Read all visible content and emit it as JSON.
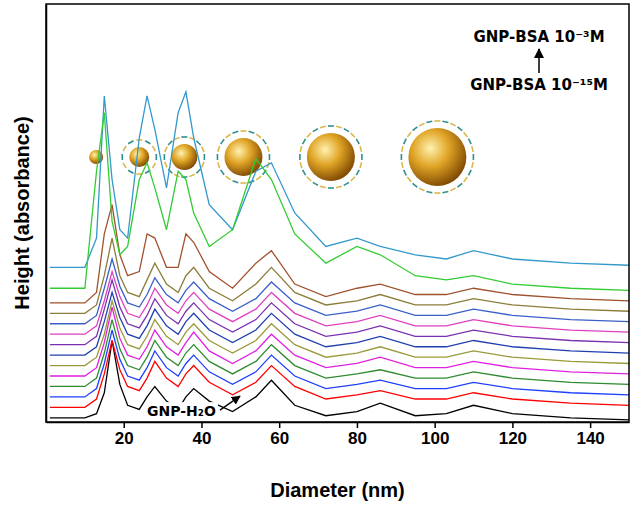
{
  "chart_data": {
    "type": "line",
    "x_label": "Diameter (nm)",
    "y_label": "Height (absorbance)",
    "annotations": [
      "GNP-BSA 10⁻³M",
      "GNP-BSA 10⁻¹⁵M",
      "GNP-H₂O"
    ],
    "x": [
      1,
      10,
      13,
      15,
      17,
      19,
      21,
      24,
      26,
      28,
      31,
      34,
      36,
      38,
      42,
      48,
      54,
      58,
      64,
      72,
      80,
      86,
      95,
      103,
      110,
      120,
      135,
      150
    ],
    "xlim": [
      0,
      150
    ],
    "xticks": [
      20,
      40,
      60,
      80,
      100,
      120,
      140
    ],
    "ylim": [
      0,
      100
    ],
    "grid": false,
    "tick_labels": "x",
    "series": [
      {
        "color": "#000000",
        "values": [
          1,
          1,
          2,
          7,
          19.5,
          9,
          4,
          3,
          6,
          8.5,
          5,
          3,
          6,
          8,
          5,
          2.5,
          6,
          10,
          4,
          1.5,
          2.5,
          4.5,
          1.5,
          2,
          4,
          2,
          1,
          0.5
        ]
      },
      {
        "color": "#ff0000",
        "values": [
          3.5,
          3.5,
          5.5,
          11.5,
          19.5,
          12.5,
          8.5,
          7.5,
          10.5,
          14.5,
          10.5,
          8.5,
          11.5,
          13.5,
          9.5,
          6.5,
          9.5,
          13.5,
          8.5,
          5.5,
          6.5,
          7.5,
          5.5,
          5.5,
          7,
          5.5,
          4.5,
          4
        ]
      },
      {
        "color": "#1f3fff",
        "values": [
          6,
          6,
          8,
          14,
          22,
          15,
          11,
          10,
          13,
          17,
          13,
          11,
          14,
          16,
          12,
          9,
          12,
          16,
          11,
          8,
          9,
          10,
          8,
          8,
          9.5,
          8,
          7,
          6.5
        ]
      },
      {
        "color": "#2e8b2e",
        "values": [
          8.5,
          8.5,
          10.5,
          16.5,
          24.5,
          17.5,
          13.5,
          12.5,
          15.5,
          19.5,
          15.5,
          13.5,
          16.5,
          18.5,
          14.5,
          11.5,
          14.5,
          18.5,
          13.5,
          10.5,
          11.5,
          12.5,
          10.5,
          10.5,
          12,
          10.5,
          9.5,
          9
        ]
      },
      {
        "color": "#e020e0",
        "values": [
          11,
          11,
          13,
          19,
          27.5,
          20,
          16,
          15,
          18,
          22,
          18,
          16,
          19,
          21.5,
          17,
          14,
          17,
          21,
          16,
          13,
          14,
          15.5,
          13,
          13,
          14.5,
          13,
          12,
          11.5
        ]
      },
      {
        "color": "#9a9a3a",
        "values": [
          13.5,
          13.5,
          15.5,
          21,
          29,
          22.5,
          18.5,
          17.5,
          20.5,
          24.5,
          20.5,
          18.5,
          21.5,
          23.5,
          19.5,
          16.5,
          19.5,
          23.5,
          18.5,
          15.5,
          16.5,
          18,
          15.5,
          15.5,
          17,
          15.5,
          14.5,
          14
        ]
      },
      {
        "color": "#2040b0",
        "values": [
          16,
          16,
          18,
          24,
          31,
          25,
          21,
          20,
          23,
          27,
          23,
          21,
          24,
          26,
          22,
          19,
          22,
          26,
          21,
          18,
          19,
          20.5,
          18,
          18,
          19.5,
          18,
          17,
          16.5
        ]
      },
      {
        "color": "#7a30b0",
        "values": [
          18.5,
          18.5,
          20.5,
          27,
          34,
          27.5,
          23.5,
          22.5,
          25.5,
          29.5,
          25.5,
          23.5,
          26.5,
          28.5,
          24.5,
          21.5,
          24.5,
          28.5,
          23.5,
          20.5,
          21.5,
          23,
          20.5,
          20.5,
          22,
          20.5,
          19.5,
          19
        ]
      },
      {
        "color": "#e040c0",
        "values": [
          21,
          21,
          23,
          29,
          36,
          30,
          26,
          25,
          28,
          32,
          28,
          26,
          29,
          31,
          27,
          24,
          27,
          31,
          26,
          23,
          24,
          25.5,
          23,
          23,
          24.5,
          23,
          22,
          21.5
        ]
      },
      {
        "color": "#3a5fc8",
        "values": [
          23.5,
          23.5,
          25.5,
          32,
          39,
          32.5,
          28.5,
          27.5,
          30.5,
          34.5,
          30.5,
          28.5,
          31.5,
          33.5,
          29.5,
          26.5,
          29.5,
          33.5,
          28.5,
          25.5,
          26.5,
          28,
          25.5,
          25.5,
          27,
          25.5,
          24.5,
          24
        ]
      },
      {
        "color": "#8b7d3a",
        "values": [
          26,
          26,
          28,
          35,
          44,
          35,
          31,
          30,
          34,
          38,
          33,
          31,
          35,
          37,
          32,
          29,
          33,
          37,
          31,
          28,
          29,
          30.5,
          28,
          28,
          29.5,
          28,
          27,
          26.5
        ]
      },
      {
        "color": "#a0522d",
        "values": [
          28.5,
          28.5,
          31,
          45,
          52,
          40,
          35,
          36,
          45,
          44,
          37,
          37,
          45,
          43,
          36,
          32,
          38,
          41,
          33,
          30,
          32,
          33,
          30.5,
          30.5,
          32,
          30.5,
          29.5,
          29
        ]
      },
      {
        "color": "#3399cc",
        "values": [
          37,
          37,
          44,
          78,
          58,
          46,
          44,
          68,
          78,
          70,
          56,
          74,
          79,
          68,
          52,
          46,
          60,
          62,
          50,
          42,
          44,
          42,
          40,
          39,
          41,
          39,
          38,
          37.5
        ]
      },
      {
        "color": "#33cc33",
        "values": [
          32,
          32,
          60,
          74,
          48,
          40,
          42,
          58,
          62,
          56,
          46,
          60,
          58,
          50,
          42,
          46,
          63,
          58,
          45,
          38,
          42,
          40,
          35,
          34,
          35,
          33,
          32,
          31.5
        ]
      }
    ]
  }
}
